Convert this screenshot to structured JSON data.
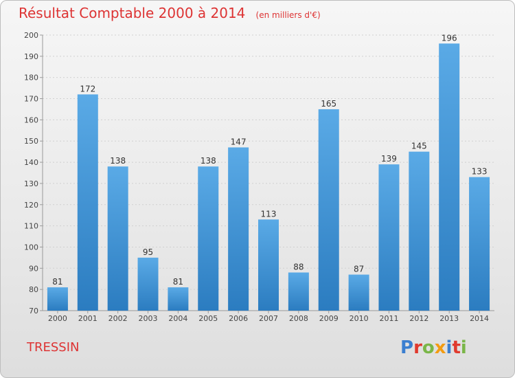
{
  "header": {
    "title": "Résultat Comptable 2000 à 2014",
    "subtitle": "(en milliers d'€)"
  },
  "footer": {
    "commune": "TRESSIN",
    "logo_text": "Proxiti"
  },
  "colors": {
    "title": "#dd3333",
    "bar_light": "#5aaae6",
    "bar_dark": "#2b7cc0",
    "logo_letters": [
      "#3b7fd0",
      "#e03a2e",
      "#7ab648",
      "#f39c12",
      "#3b7fd0",
      "#e03a2e",
      "#7ab648"
    ]
  },
  "chart_data": {
    "type": "bar",
    "title": "Résultat Comptable 2000 à 2014",
    "xlabel": "",
    "ylabel": "",
    "ylim": [
      70,
      200
    ],
    "yticks": [
      70,
      80,
      90,
      100,
      110,
      120,
      130,
      140,
      150,
      160,
      170,
      180,
      190,
      200
    ],
    "grid": true,
    "categories": [
      "2000",
      "2001",
      "2002",
      "2003",
      "2004",
      "2005",
      "2006",
      "2007",
      "2008",
      "2009",
      "2010",
      "2011",
      "2012",
      "2013",
      "2014"
    ],
    "values": [
      81,
      172,
      138,
      95,
      81,
      138,
      147,
      113,
      88,
      165,
      87,
      139,
      145,
      196,
      133
    ]
  }
}
